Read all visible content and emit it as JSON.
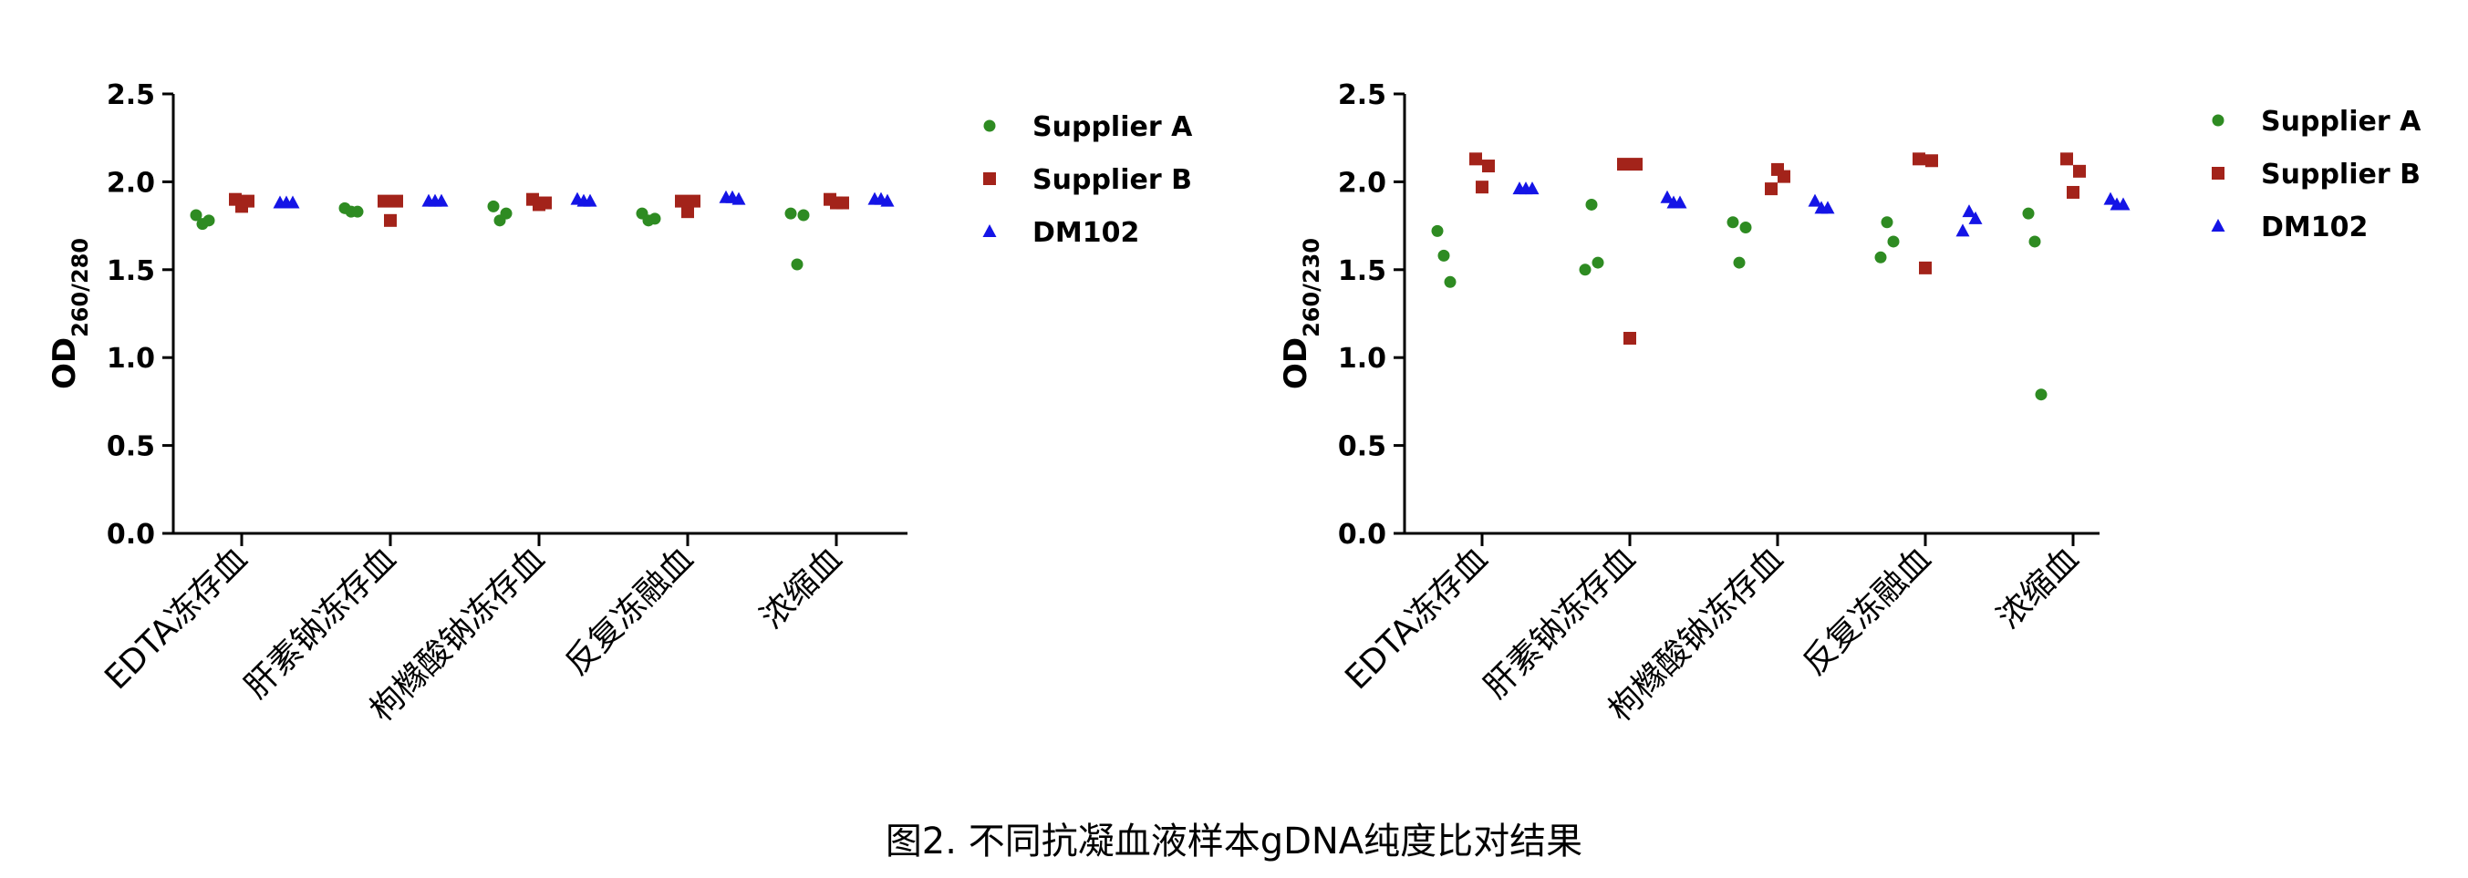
{
  "caption": "图2. 不同抗凝血液样本gDNA纯度比对结果",
  "chart_data": [
    {
      "type": "scatter",
      "title": "",
      "ylabel_main": "OD",
      "ylabel_sub": "260/280",
      "ylim": [
        0,
        2.5
      ],
      "yticks": [
        "0.0",
        "0.5",
        "1.0",
        "1.5",
        "2.0",
        "2.5"
      ],
      "categories": [
        "EDTA冻存血",
        "肝素钠冻存血",
        "枸橼酸钠冻存血",
        "反复冻融血",
        "浓缩血"
      ],
      "legend_position": "right",
      "series": [
        {
          "name": "Supplier A",
          "marker": "circle",
          "color": "#2e8b22",
          "values": [
            [
              1.81,
              1.76,
              1.78
            ],
            [
              1.85,
              1.83,
              1.83
            ],
            [
              1.86,
              1.78,
              1.82
            ],
            [
              1.82,
              1.78,
              1.79
            ],
            [
              1.82,
              1.53,
              1.81
            ]
          ]
        },
        {
          "name": "Supplier B",
          "marker": "square",
          "color": "#a3231a",
          "values": [
            [
              1.9,
              1.86,
              1.89
            ],
            [
              1.89,
              1.78,
              1.89
            ],
            [
              1.9,
              1.87,
              1.88
            ],
            [
              1.89,
              1.83,
              1.89
            ],
            [
              1.9,
              1.88,
              1.88
            ]
          ]
        },
        {
          "name": "DM102",
          "marker": "triangle",
          "color": "#1414e6",
          "values": [
            [
              1.88,
              1.88,
              1.88
            ],
            [
              1.89,
              1.89,
              1.89
            ],
            [
              1.9,
              1.89,
              1.89
            ],
            [
              1.91,
              1.91,
              1.9
            ],
            [
              1.9,
              1.9,
              1.89
            ]
          ]
        }
      ]
    },
    {
      "type": "scatter",
      "title": "",
      "ylabel_main": "OD",
      "ylabel_sub": "260/230",
      "ylim": [
        0,
        2.5
      ],
      "yticks": [
        "0.0",
        "0.5",
        "1.0",
        "1.5",
        "2.0",
        "2.5"
      ],
      "categories": [
        "EDTA冻存血",
        "肝素钠冻存血",
        "枸橼酸钠冻存血",
        "反复冻融血",
        "浓缩血"
      ],
      "legend_position": "right",
      "series": [
        {
          "name": "Supplier A",
          "marker": "circle",
          "color": "#2e8b22",
          "values": [
            [
              1.72,
              1.58,
              1.43
            ],
            [
              1.5,
              1.87,
              1.54
            ],
            [
              1.77,
              1.54,
              1.74
            ],
            [
              1.57,
              1.77,
              1.66
            ],
            [
              1.82,
              1.66,
              0.79
            ]
          ]
        },
        {
          "name": "Supplier B",
          "marker": "square",
          "color": "#a3231a",
          "values": [
            [
              2.13,
              1.97,
              2.09
            ],
            [
              2.1,
              1.11,
              2.1
            ],
            [
              1.96,
              2.07,
              2.03
            ],
            [
              2.13,
              1.51,
              2.12
            ],
            [
              2.13,
              1.94,
              2.06
            ]
          ]
        },
        {
          "name": "DM102",
          "marker": "triangle",
          "color": "#1414e6",
          "values": [
            [
              1.96,
              1.96,
              1.96
            ],
            [
              1.91,
              1.88,
              1.88
            ],
            [
              1.89,
              1.85,
              1.85
            ],
            [
              1.72,
              1.83,
              1.79
            ],
            [
              1.9,
              1.87,
              1.87
            ]
          ]
        }
      ]
    }
  ]
}
